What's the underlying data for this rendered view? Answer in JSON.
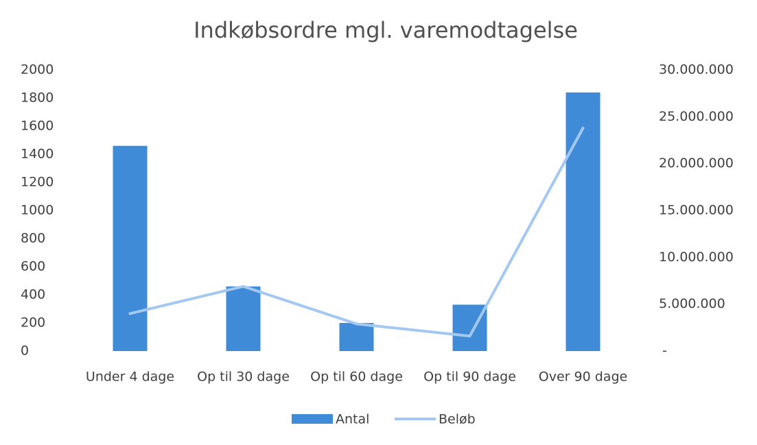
{
  "chart_data": {
    "type": "bar-line",
    "title": "Indkøbsordre mgl. varemodtagelse",
    "categories": [
      "Under 4 dage",
      "Op til 30 dage",
      "Op til 60 dage",
      "Op til 90 dage",
      "Over 90 dage"
    ],
    "series": [
      {
        "name": "Antal",
        "type": "bar",
        "color": "#3f8bd8",
        "values": [
          1460,
          460,
          200,
          330,
          1840
        ]
      },
      {
        "name": "Beløb",
        "type": "line",
        "axis": "y2",
        "color": "#a3c8f2",
        "values": [
          4000000,
          6900000,
          2900000,
          1600000,
          23800000
        ]
      }
    ],
    "ylim": [
      0,
      2000
    ],
    "yticks": [
      0,
      200,
      400,
      600,
      800,
      1000,
      1200,
      1400,
      1600,
      1800,
      2000
    ],
    "y2lim": [
      0,
      30000000
    ],
    "y2ticks": [
      {
        "value": 0,
        "label": "-"
      },
      {
        "value": 5000000,
        "label": "5.000.000"
      },
      {
        "value": 10000000,
        "label": "10.000.000"
      },
      {
        "value": 15000000,
        "label": "15.000.000"
      },
      {
        "value": 20000000,
        "label": "20.000.000"
      },
      {
        "value": 25000000,
        "label": "25.000.000"
      },
      {
        "value": 30000000,
        "label": "30.000.000"
      }
    ],
    "grid": false,
    "legend": "bottom"
  }
}
